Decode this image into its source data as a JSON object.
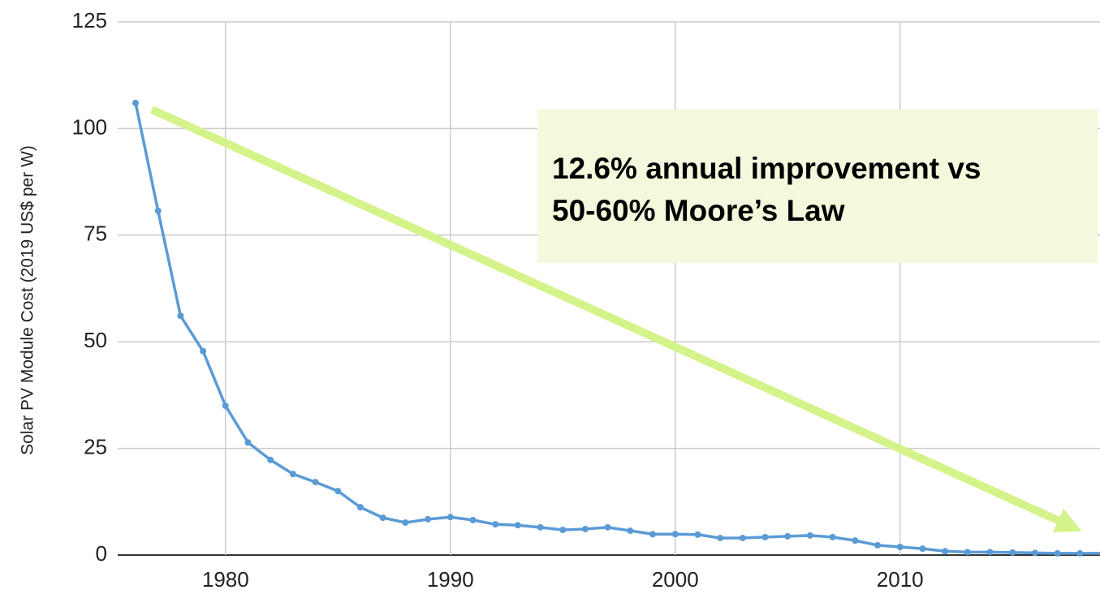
{
  "chart_data": {
    "type": "line",
    "ylabel": "Solar PV Module Cost (2019 US$ per W)",
    "annotation": [
      "12.6% annual improvement vs",
      "50-60% Moore’s Law"
    ],
    "x": [
      1976,
      1977,
      1978,
      1979,
      1980,
      1981,
      1982,
      1983,
      1984,
      1985,
      1986,
      1987,
      1988,
      1989,
      1990,
      1991,
      1992,
      1993,
      1994,
      1995,
      1996,
      1997,
      1998,
      1999,
      2000,
      2001,
      2002,
      2003,
      2004,
      2005,
      2006,
      2007,
      2008,
      2009,
      2010,
      2011,
      2012,
      2013,
      2014,
      2015,
      2016,
      2017,
      2018,
      2019
    ],
    "series": [
      {
        "color": "#5b9bd5",
        "values": [
          106,
          80.7,
          56.1,
          47.8,
          35,
          26.4,
          22.3,
          19,
          17.1,
          15,
          11.2,
          8.75,
          7.6,
          8.4,
          8.9,
          8.2,
          7.2,
          7,
          6.5,
          5.9,
          6.1,
          6.5,
          5.7,
          4.9,
          4.9,
          4.8,
          4,
          4,
          4.2,
          4.4,
          4.6,
          4.2,
          3.4,
          2.3,
          1.9,
          1.5,
          0.9,
          0.7,
          0.7,
          0.6,
          0.5,
          0.4,
          0.4,
          0.4
        ]
      }
    ],
    "xlim": [
      1976,
      2019
    ],
    "xticks": [
      1980,
      1990,
      2000,
      2010
    ],
    "ylim": [
      0,
      125
    ],
    "yticks": [
      0,
      25,
      50,
      75,
      100,
      125
    ],
    "grid": true
  }
}
